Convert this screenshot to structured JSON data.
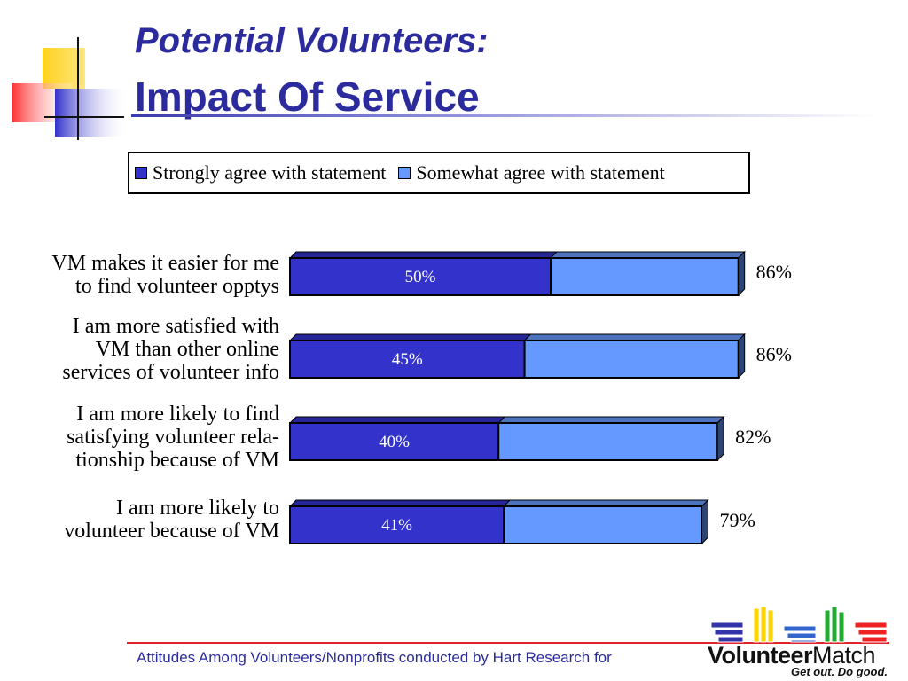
{
  "header": {
    "title_line1": "Potential Volunteers:",
    "title_line2": "Impact Of Service"
  },
  "chart_data": {
    "type": "bar",
    "orientation": "horizontal",
    "stacked": true,
    "title": "",
    "xlabel": "",
    "ylabel": "",
    "xlim": [
      0,
      100
    ],
    "grid": false,
    "legend_position": "top",
    "categories": [
      [
        "VM makes it easier for me",
        "to find volunteer opptys"
      ],
      [
        "I am more satisfied with",
        "VM than other online",
        "services of volunteer info"
      ],
      [
        "I am more likely to find",
        "satisfying volunteer rela-",
        "tionship because of VM"
      ],
      [
        "I am more likely to",
        "volunteer because of VM"
      ]
    ],
    "series": [
      {
        "name": "Strongly agree with statement",
        "color": "#3333cc",
        "values": [
          50,
          45,
          40,
          41
        ],
        "labels": [
          "50%",
          "45%",
          "40%",
          "41%"
        ]
      },
      {
        "name": "Somewhat agree with statement",
        "color": "#6699ff",
        "values": [
          36,
          41,
          42,
          38
        ]
      }
    ],
    "totals": [
      86,
      86,
      82,
      79
    ],
    "total_labels": [
      "86%",
      "86%",
      "82%",
      "79%"
    ]
  },
  "footer": {
    "text": "Attitudes Among Volunteers/Nonprofits conducted by Hart Research for",
    "logo_word_bold": "Volunteer",
    "logo_word_regular": "Match",
    "logo_tagline": "Get out. Do good."
  }
}
